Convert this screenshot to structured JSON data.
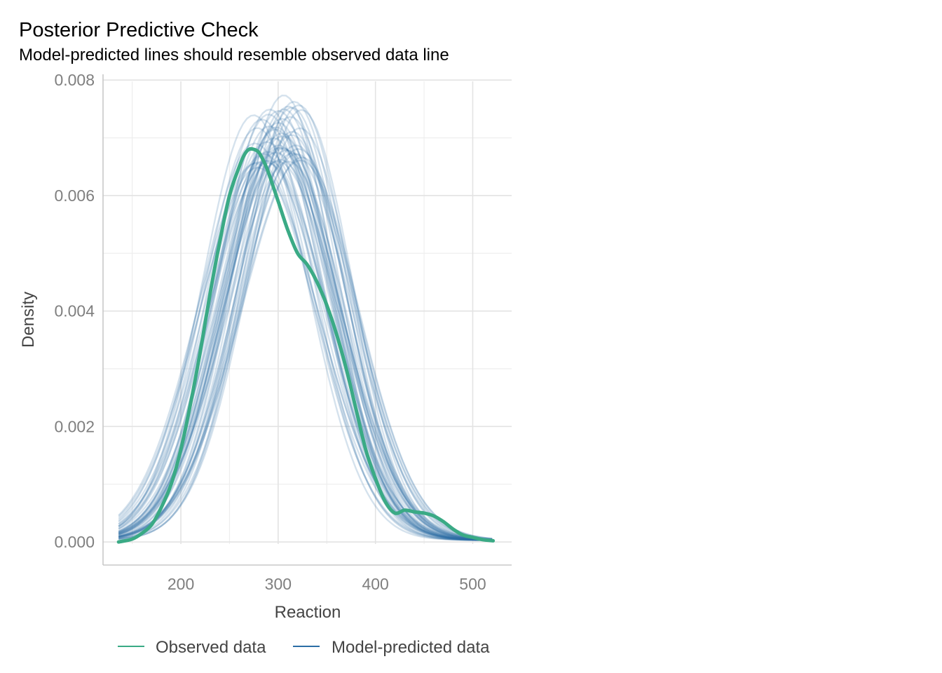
{
  "chart_data": {
    "type": "line",
    "title": "Posterior Predictive Check",
    "subtitle": "Model-predicted lines should resemble observed data line",
    "xlabel": "Reaction",
    "ylabel": "Density",
    "xlim": [
      120,
      540
    ],
    "ylim": [
      -0.0004,
      0.0081
    ],
    "x_ticks": [
      200,
      300,
      400,
      500
    ],
    "x_tick_labels": [
      "200",
      "300",
      "400",
      "500"
    ],
    "y_ticks": [
      0,
      0.002,
      0.004,
      0.006,
      0.008
    ],
    "y_tick_labels": [
      "0.000",
      "0.002",
      "0.004",
      "0.006",
      "0.008"
    ],
    "grid": true,
    "legend_position": "bottom",
    "colors": {
      "observed": "#3aaa85",
      "predicted": "#2b6ea5"
    },
    "observed": {
      "name": "Observed data",
      "x": [
        136,
        150,
        160,
        170,
        180,
        190,
        200,
        210,
        220,
        230,
        240,
        250,
        260,
        265,
        270,
        275,
        280,
        285,
        290,
        300,
        310,
        320,
        330,
        340,
        350,
        360,
        370,
        380,
        390,
        400,
        410,
        420,
        430,
        440,
        450,
        460,
        470,
        480,
        490,
        500,
        510,
        521
      ],
      "y": [
        0.0,
        5e-05,
        0.00015,
        0.0003,
        0.0006,
        0.001,
        0.0016,
        0.0024,
        0.0033,
        0.0043,
        0.0052,
        0.006,
        0.0065,
        0.0067,
        0.0068,
        0.0068,
        0.00675,
        0.0066,
        0.0064,
        0.0059,
        0.0054,
        0.005,
        0.0048,
        0.0045,
        0.0041,
        0.0036,
        0.003,
        0.0023,
        0.0016,
        0.0011,
        0.0007,
        0.0005,
        0.00055,
        0.00052,
        0.0005,
        0.00045,
        0.00035,
        0.00022,
        0.00012,
        8e-05,
        4e-05,
        2e-05
      ]
    },
    "predicted": {
      "name": "Model-predicted data",
      "draws": 50,
      "mean_range": [
        280,
        322
      ],
      "sd_range": [
        52,
        62
      ],
      "x_range": [
        136,
        521
      ]
    }
  },
  "legend": {
    "observed_label": "Observed data",
    "predicted_label": "Model-predicted data"
  }
}
